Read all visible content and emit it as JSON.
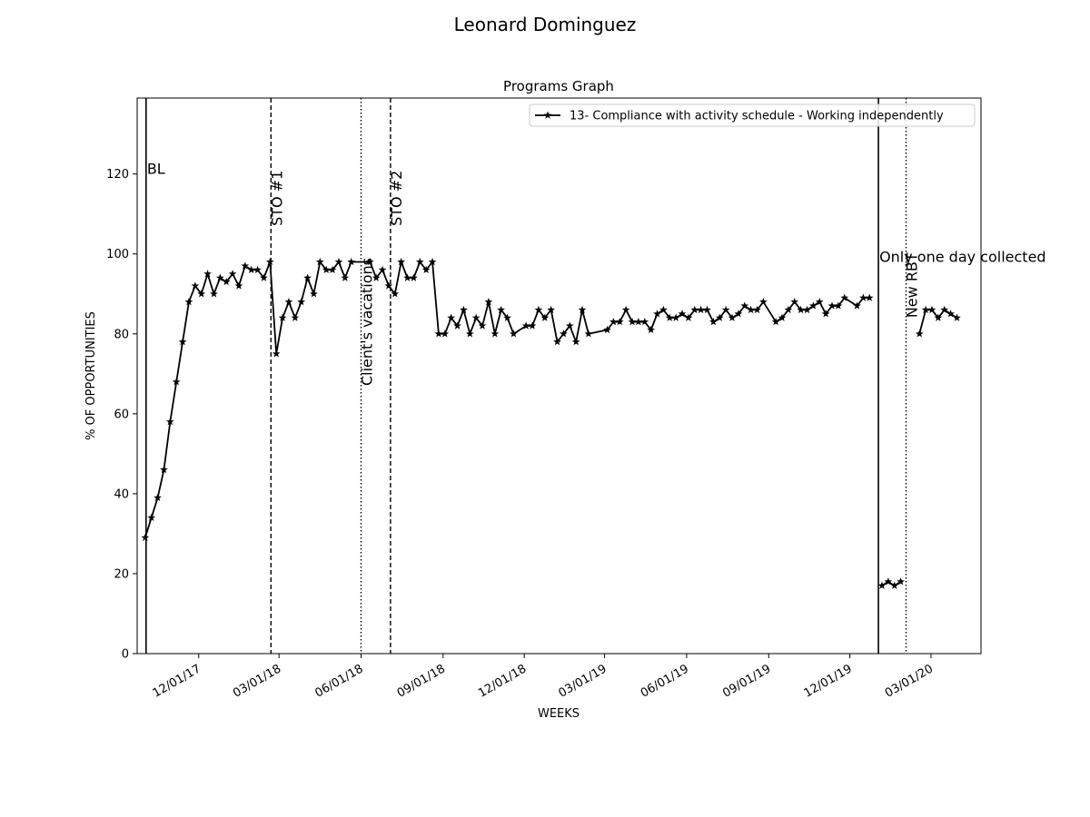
{
  "suptitle": "Leonard  Dominguez",
  "chart_data": {
    "type": "line",
    "title": "Programs Graph",
    "xlabel": "WEEKS",
    "ylabel": "% OF OPPORTUNITIES",
    "xlim": [
      "2017-09-23",
      "2020-04-26"
    ],
    "ylim": [
      0,
      139
    ],
    "x_ticks": [
      {
        "date": "2017-12-01",
        "label": "12/01/17"
      },
      {
        "date": "2018-03-01",
        "label": "03/01/18"
      },
      {
        "date": "2018-06-01",
        "label": "06/01/18"
      },
      {
        "date": "2018-09-01",
        "label": "09/01/18"
      },
      {
        "date": "2018-12-01",
        "label": "12/01/18"
      },
      {
        "date": "2019-03-01",
        "label": "03/01/19"
      },
      {
        "date": "2019-06-01",
        "label": "06/01/19"
      },
      {
        "date": "2019-09-01",
        "label": "09/01/19"
      },
      {
        "date": "2019-12-01",
        "label": "12/01/19"
      },
      {
        "date": "2020-03-01",
        "label": "03/01/20"
      }
    ],
    "y_ticks": [
      0,
      20,
      40,
      60,
      80,
      100,
      120
    ],
    "grid": false,
    "legend": {
      "position": "top-right"
    },
    "series": [
      {
        "name": "13- Compliance with activity schedule - Working independently",
        "color": "#000000",
        "marker": "star",
        "segments": [
          [
            [
              "2017-10-02",
              29
            ],
            [
              "2017-10-09",
              34
            ],
            [
              "2017-10-16",
              39
            ],
            [
              "2017-10-23",
              46
            ],
            [
              "2017-10-30",
              58
            ],
            [
              "2017-11-06",
              68
            ],
            [
              "2017-11-13",
              78
            ],
            [
              "2017-11-20",
              88
            ],
            [
              "2017-11-27",
              92
            ],
            [
              "2017-12-04",
              90
            ],
            [
              "2017-12-11",
              95
            ],
            [
              "2017-12-18",
              90
            ],
            [
              "2017-12-25",
              94
            ],
            [
              "2018-01-01",
              93
            ],
            [
              "2018-01-08",
              95
            ],
            [
              "2018-01-15",
              92
            ],
            [
              "2018-01-22",
              97
            ],
            [
              "2018-01-29",
              96
            ],
            [
              "2018-02-05",
              96
            ],
            [
              "2018-02-12",
              94
            ],
            [
              "2018-02-19",
              98
            ],
            [
              "2018-02-26",
              75
            ],
            [
              "2018-03-05",
              84
            ],
            [
              "2018-03-12",
              88
            ],
            [
              "2018-03-19",
              84
            ],
            [
              "2018-03-26",
              88
            ],
            [
              "2018-04-02",
              94
            ],
            [
              "2018-04-09",
              90
            ],
            [
              "2018-04-16",
              98
            ],
            [
              "2018-04-23",
              96
            ],
            [
              "2018-04-30",
              96
            ],
            [
              "2018-05-07",
              98
            ],
            [
              "2018-05-14",
              94
            ],
            [
              "2018-05-21",
              98
            ],
            [
              "2018-06-11",
              98
            ],
            [
              "2018-06-18",
              94
            ],
            [
              "2018-06-25",
              96
            ],
            [
              "2018-07-02",
              92
            ],
            [
              "2018-07-09",
              90
            ],
            [
              "2018-07-16",
              98
            ],
            [
              "2018-07-23",
              94
            ],
            [
              "2018-07-30",
              94
            ],
            [
              "2018-08-06",
              98
            ],
            [
              "2018-08-13",
              96
            ],
            [
              "2018-08-20",
              98
            ],
            [
              "2018-08-27",
              80
            ],
            [
              "2018-09-03",
              80
            ],
            [
              "2018-09-10",
              84
            ],
            [
              "2018-09-17",
              82
            ],
            [
              "2018-09-24",
              86
            ],
            [
              "2018-10-01",
              80
            ],
            [
              "2018-10-08",
              84
            ],
            [
              "2018-10-15",
              82
            ],
            [
              "2018-10-22",
              88
            ],
            [
              "2018-10-29",
              80
            ],
            [
              "2018-11-05",
              86
            ],
            [
              "2018-11-12",
              84
            ],
            [
              "2018-11-19",
              80
            ],
            [
              "2018-12-03",
              82
            ],
            [
              "2018-12-10",
              82
            ],
            [
              "2018-12-17",
              86
            ],
            [
              "2018-12-24",
              84
            ],
            [
              "2018-12-31",
              86
            ],
            [
              "2019-01-07",
              78
            ],
            [
              "2019-01-14",
              80
            ],
            [
              "2019-01-21",
              82
            ],
            [
              "2019-01-28",
              78
            ],
            [
              "2019-02-04",
              86
            ],
            [
              "2019-02-11",
              80
            ],
            [
              "2019-03-04",
              81
            ],
            [
              "2019-03-11",
              83
            ],
            [
              "2019-03-18",
              83
            ],
            [
              "2019-03-25",
              86
            ],
            [
              "2019-04-01",
              83
            ],
            [
              "2019-04-08",
              83
            ],
            [
              "2019-04-15",
              83
            ],
            [
              "2019-04-22",
              81
            ],
            [
              "2019-04-29",
              85
            ],
            [
              "2019-05-06",
              86
            ],
            [
              "2019-05-13",
              84
            ],
            [
              "2019-05-20",
              84
            ],
            [
              "2019-05-27",
              85
            ],
            [
              "2019-06-03",
              84
            ],
            [
              "2019-06-10",
              86
            ],
            [
              "2019-06-17",
              86
            ],
            [
              "2019-06-24",
              86
            ],
            [
              "2019-07-01",
              83
            ],
            [
              "2019-07-08",
              84
            ],
            [
              "2019-07-15",
              86
            ],
            [
              "2019-07-22",
              84
            ],
            [
              "2019-07-29",
              85
            ],
            [
              "2019-08-05",
              87
            ],
            [
              "2019-08-12",
              86
            ],
            [
              "2019-08-19",
              86
            ],
            [
              "2019-08-26",
              88
            ],
            [
              "2019-09-09",
              83
            ],
            [
              "2019-09-16",
              84
            ],
            [
              "2019-09-23",
              86
            ],
            [
              "2019-09-30",
              88
            ],
            [
              "2019-10-07",
              86
            ],
            [
              "2019-10-14",
              86
            ],
            [
              "2019-10-21",
              87
            ],
            [
              "2019-10-28",
              88
            ],
            [
              "2019-11-04",
              85
            ],
            [
              "2019-11-11",
              87
            ],
            [
              "2019-11-18",
              87
            ],
            [
              "2019-11-25",
              89
            ],
            [
              "2019-12-09",
              87
            ],
            [
              "2019-12-16",
              89
            ],
            [
              "2019-12-23",
              89
            ]
          ],
          [
            [
              "2020-01-06",
              17
            ],
            [
              "2020-01-13",
              18
            ],
            [
              "2020-01-20",
              17
            ],
            [
              "2020-01-27",
              18
            ]
          ],
          [
            [
              "2020-02-17",
              80
            ],
            [
              "2020-02-24",
              86
            ],
            [
              "2020-03-02",
              86
            ],
            [
              "2020-03-09",
              84
            ],
            [
              "2020-03-16",
              86
            ],
            [
              "2020-03-23",
              85
            ],
            [
              "2020-03-30",
              84
            ]
          ]
        ]
      }
    ],
    "phase_lines": [
      {
        "date": "2017-10-03",
        "style": "solid",
        "label": "BL",
        "label_y": 120,
        "rotated": false
      },
      {
        "date": "2018-02-20",
        "style": "dashed",
        "label": "STO #1",
        "label_y": 107,
        "rotated": true
      },
      {
        "date": "2018-06-01",
        "style": "dotted",
        "label": "Client's vacations",
        "label_y": 67,
        "rotated": true
      },
      {
        "date": "2018-07-04",
        "style": "dashed",
        "label": "STO #2",
        "label_y": 107,
        "rotated": true
      },
      {
        "date": "2020-01-02",
        "style": "solid",
        "label": "Only one day collected",
        "label_y": 98,
        "rotated": false
      },
      {
        "date": "2020-02-02",
        "style": "dotted",
        "label": "New RBT",
        "label_y": 84,
        "rotated": true
      }
    ]
  }
}
